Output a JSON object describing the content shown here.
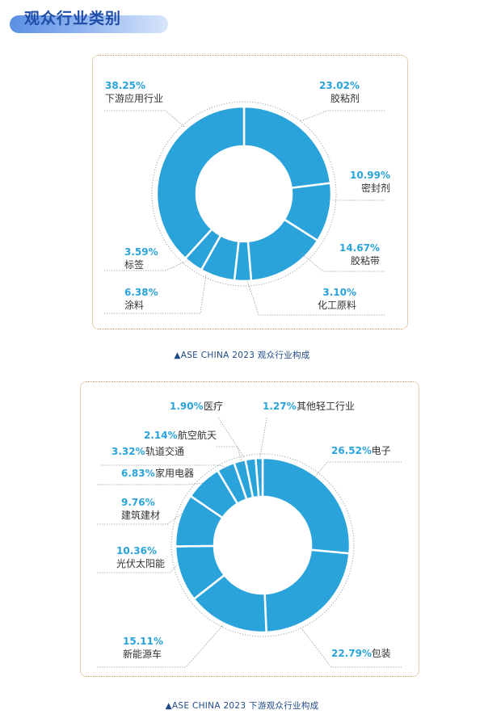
{
  "header": {
    "title": "观众行业类别"
  },
  "colors": {
    "slice": "#2aa3db",
    "accent": "#2aa3db",
    "leader": "#9b9b9b",
    "text": "#333333",
    "panel_border": "#c9a25a",
    "caption": "#1f4a86"
  },
  "chart_data": [
    {
      "type": "pie",
      "variant": "donut",
      "caption": "▲ASE CHINA 2023 观众行业构成",
      "slices": [
        {
          "label": "胶粘剂",
          "pct_text": "23.02%",
          "value": 23.02
        },
        {
          "label": "密封剂",
          "pct_text": "10.99%",
          "value": 10.99
        },
        {
          "label": "胶粘带",
          "pct_text": "14.67%",
          "value": 14.67
        },
        {
          "label": "化工原料",
          "pct_text": "3.10%",
          "value": 3.1
        },
        {
          "label": "涂料",
          "pct_text": "6.38%",
          "value": 6.38
        },
        {
          "label": "标签",
          "pct_text": "3.59%",
          "value": 3.59
        },
        {
          "label": "下游应用行业",
          "pct_text": "38.25%",
          "value": 38.25
        }
      ]
    },
    {
      "type": "pie",
      "variant": "donut",
      "caption": "▲ASE CHINA 2023 下游观众行业构成",
      "slices": [
        {
          "label": "电子",
          "pct_text": "26.52%",
          "value": 26.52
        },
        {
          "label": "包装",
          "pct_text": "22.79%",
          "value": 22.79
        },
        {
          "label": "新能源车",
          "pct_text": "15.11%",
          "value": 15.11
        },
        {
          "label": "光伏太阳能",
          "pct_text": "10.36%",
          "value": 10.36
        },
        {
          "label": "建筑建材",
          "pct_text": "9.76%",
          "value": 9.76
        },
        {
          "label": "家用电器",
          "pct_text": "6.83%",
          "value": 6.83
        },
        {
          "label": "轨道交通",
          "pct_text": "3.32%",
          "value": 3.32
        },
        {
          "label": "航空航天",
          "pct_text": "2.14%",
          "value": 2.14
        },
        {
          "label": "医疗",
          "pct_text": "1.90%",
          "value": 1.9
        },
        {
          "label": "其他轻工行业",
          "pct_text": "1.27%",
          "value": 1.27
        }
      ]
    }
  ]
}
